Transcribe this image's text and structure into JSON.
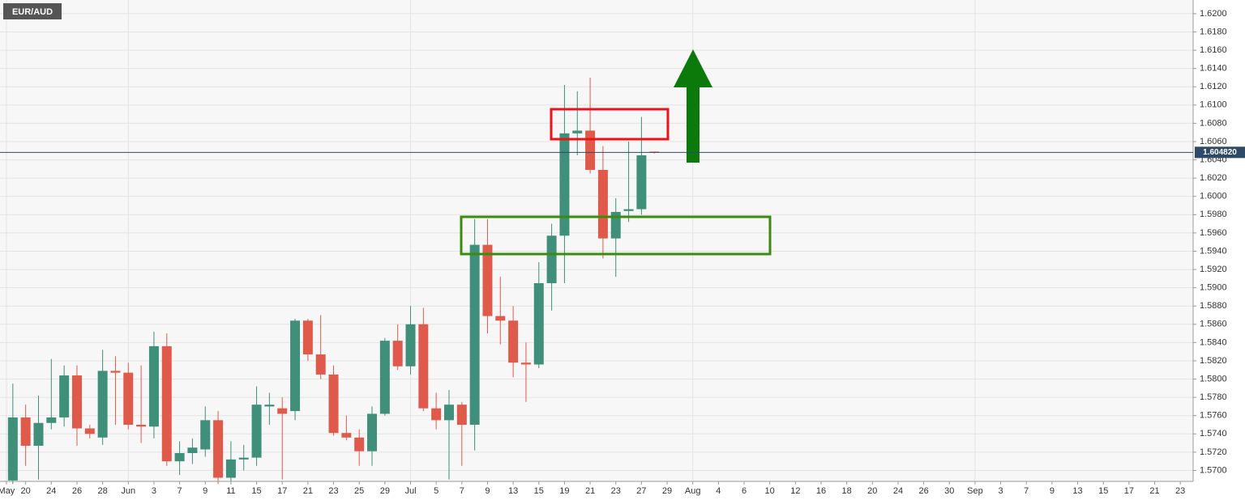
{
  "chart_data": {
    "type": "candlestick",
    "title": "EUR/AUD",
    "x": [
      1,
      2,
      3,
      4,
      5,
      6,
      7,
      8,
      9,
      10,
      11,
      12,
      13,
      14,
      15,
      16,
      17,
      18,
      19,
      20,
      21,
      22,
      23,
      24,
      25,
      26,
      27,
      28,
      29,
      30,
      31,
      32,
      33,
      34,
      35,
      36,
      37,
      38,
      39,
      40,
      41,
      42,
      43,
      44,
      45,
      46,
      47,
      48,
      49,
      50,
      51
    ],
    "open": [
      1.5689,
      1.5758,
      1.5727,
      1.5752,
      1.5758,
      1.5804,
      1.5746,
      1.5736,
      1.5809,
      1.5807,
      1.575,
      1.5748,
      1.5836,
      1.571,
      1.5719,
      1.5723,
      1.5755,
      1.5692,
      1.5712,
      1.5714,
      1.577,
      1.5768,
      1.5765,
      1.5864,
      1.5827,
      1.5805,
      1.5741,
      1.5736,
      1.5721,
      1.5762,
      1.5842,
      1.5814,
      1.586,
      1.5768,
      1.5755,
      1.5772,
      1.575,
      1.5947,
      1.5869,
      1.5864,
      1.5818,
      1.5816,
      1.5905,
      1.5957,
      1.6069,
      1.6072,
      1.6029,
      1.5954,
      1.5984,
      1.5986,
      1.6049
    ],
    "high": [
      1.5795,
      1.5772,
      1.5782,
      1.5822,
      1.5815,
      1.5815,
      1.575,
      1.5832,
      1.5825,
      1.5818,
      1.5815,
      1.5852,
      1.585,
      1.5732,
      1.5735,
      1.577,
      1.5765,
      1.5732,
      1.5728,
      1.5792,
      1.5785,
      1.578,
      1.5866,
      1.5866,
      1.587,
      1.5815,
      1.576,
      1.5745,
      1.577,
      1.5845,
      1.586,
      1.588,
      1.5878,
      1.5785,
      1.5788,
      1.5775,
      1.5975,
      1.5975,
      1.5912,
      1.588,
      1.584,
      1.5928,
      1.597,
      1.6122,
      1.6115,
      1.613,
      1.6055,
      1.5998,
      1.606,
      1.6087,
      1.6049
    ],
    "low": [
      1.5685,
      1.5705,
      1.569,
      1.5745,
      1.5748,
      1.5727,
      1.5735,
      1.5728,
      1.575,
      1.5745,
      1.573,
      1.5735,
      1.5705,
      1.5695,
      1.5707,
      1.5715,
      1.5685,
      1.5688,
      1.57,
      1.5705,
      1.575,
      1.569,
      1.5755,
      1.582,
      1.58,
      1.5738,
      1.5733,
      1.5705,
      1.5705,
      1.576,
      1.581,
      1.5805,
      1.5765,
      1.5745,
      1.569,
      1.5705,
      1.5722,
      1.585,
      1.5838,
      1.5802,
      1.5775,
      1.5812,
      1.5875,
      1.5905,
      1.6045,
      1.6025,
      1.5932,
      1.5912,
      1.5972,
      1.598,
      1.6047
    ],
    "close": [
      1.5758,
      1.5727,
      1.5752,
      1.5758,
      1.5804,
      1.5746,
      1.574,
      1.5809,
      1.5807,
      1.575,
      1.5748,
      1.5836,
      1.571,
      1.5719,
      1.5725,
      1.5755,
      1.5692,
      1.5712,
      1.5714,
      1.5772,
      1.5772,
      1.5762,
      1.5864,
      1.5827,
      1.5805,
      1.5741,
      1.5736,
      1.5721,
      1.5762,
      1.5842,
      1.5814,
      1.586,
      1.5768,
      1.5755,
      1.5772,
      1.575,
      1.5947,
      1.5869,
      1.5864,
      1.5818,
      1.5816,
      1.5905,
      1.5957,
      1.6069,
      1.6072,
      1.6029,
      1.5954,
      1.5983,
      1.5986,
      1.6045,
      1.6048
    ],
    "up_color": "#3f8f7a",
    "down_color": "#e05a4b",
    "xlim": [
      0,
      93
    ],
    "xticks": [
      {
        "value": 0.5,
        "label": "May"
      },
      {
        "value": 2,
        "label": "20"
      },
      {
        "value": 4,
        "label": "24"
      },
      {
        "value": 6,
        "label": "26"
      },
      {
        "value": 8,
        "label": "28"
      },
      {
        "value": 10,
        "label": "Jun"
      },
      {
        "value": 12,
        "label": "3"
      },
      {
        "value": 14,
        "label": "7"
      },
      {
        "value": 16,
        "label": "9"
      },
      {
        "value": 18,
        "label": "11"
      },
      {
        "value": 20,
        "label": "15"
      },
      {
        "value": 22,
        "label": "17"
      },
      {
        "value": 24,
        "label": "21"
      },
      {
        "value": 26,
        "label": "23"
      },
      {
        "value": 28,
        "label": "25"
      },
      {
        "value": 30,
        "label": "29"
      },
      {
        "value": 32,
        "label": "Jul"
      },
      {
        "value": 34,
        "label": "5"
      },
      {
        "value": 36,
        "label": "7"
      },
      {
        "value": 38,
        "label": "9"
      },
      {
        "value": 40,
        "label": "13"
      },
      {
        "value": 42,
        "label": "15"
      },
      {
        "value": 44,
        "label": "19"
      },
      {
        "value": 46,
        "label": "21"
      },
      {
        "value": 48,
        "label": "23"
      },
      {
        "value": 50,
        "label": "27"
      },
      {
        "value": 52,
        "label": "29"
      },
      {
        "value": 54,
        "label": "Aug"
      },
      {
        "value": 56,
        "label": "4"
      },
      {
        "value": 58,
        "label": "6"
      },
      {
        "value": 60,
        "label": "10"
      },
      {
        "value": 62,
        "label": "12"
      },
      {
        "value": 64,
        "label": "16"
      },
      {
        "value": 66,
        "label": "18"
      },
      {
        "value": 68,
        "label": "20"
      },
      {
        "value": 70,
        "label": "24"
      },
      {
        "value": 72,
        "label": "26"
      },
      {
        "value": 74,
        "label": "30"
      },
      {
        "value": 76,
        "label": "Sep"
      },
      {
        "value": 78,
        "label": "3"
      },
      {
        "value": 80,
        "label": "7"
      },
      {
        "value": 82,
        "label": "9"
      },
      {
        "value": 84,
        "label": "13"
      },
      {
        "value": 86,
        "label": "15"
      },
      {
        "value": 88,
        "label": "17"
      },
      {
        "value": 90,
        "label": "21"
      },
      {
        "value": 92,
        "label": "23"
      }
    ],
    "ylim": [
      1.5688,
      1.6215
    ],
    "yticks": [
      {
        "value": 1.57,
        "label": "1.5700"
      },
      {
        "value": 1.572,
        "label": "1.5720"
      },
      {
        "value": 1.574,
        "label": "1.5740"
      },
      {
        "value": 1.576,
        "label": "1.5760"
      },
      {
        "value": 1.578,
        "label": "1.5780"
      },
      {
        "value": 1.58,
        "label": "1.5800"
      },
      {
        "value": 1.582,
        "label": "1.5820"
      },
      {
        "value": 1.584,
        "label": "1.5840"
      },
      {
        "value": 1.586,
        "label": "1.5860"
      },
      {
        "value": 1.588,
        "label": "1.5880"
      },
      {
        "value": 1.59,
        "label": "1.5900"
      },
      {
        "value": 1.592,
        "label": "1.5920"
      },
      {
        "value": 1.594,
        "label": "1.5940"
      },
      {
        "value": 1.596,
        "label": "1.5960"
      },
      {
        "value": 1.598,
        "label": "1.5980"
      },
      {
        "value": 1.6,
        "label": "1.6000"
      },
      {
        "value": 1.602,
        "label": "1.6020"
      },
      {
        "value": 1.604,
        "label": "1.6040"
      },
      {
        "value": 1.606,
        "label": "1.6060"
      },
      {
        "value": 1.608,
        "label": "1.6080"
      },
      {
        "value": 1.61,
        "label": "1.6100"
      },
      {
        "value": 1.612,
        "label": "1.6120"
      },
      {
        "value": 1.614,
        "label": "1.6140"
      },
      {
        "value": 1.616,
        "label": "1.6160"
      },
      {
        "value": 1.618,
        "label": "1.6180"
      },
      {
        "value": 1.62,
        "label": "1.6200"
      }
    ],
    "current_price": {
      "value": 1.60482,
      "label": "1.604820"
    },
    "grid": true
  }
}
